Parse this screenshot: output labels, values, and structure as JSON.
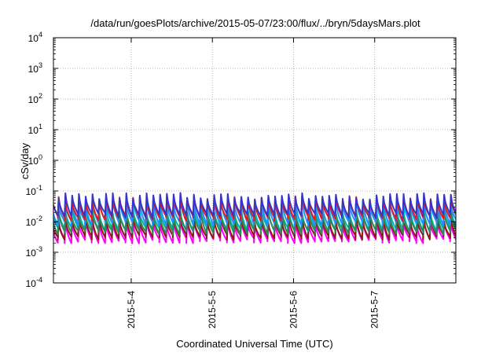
{
  "chart_data": {
    "type": "line",
    "title": "/data/run/goesPlots/archive/2015-05-07/23:00/flux/../bryn/5daysMars.plot",
    "xlabel": "Coordinated Universal Time (UTC)",
    "ylabel": "cSv/day",
    "yscale": "log",
    "ylim": [
      0.0001,
      10000
    ],
    "y_ticks": [
      {
        "base": "10",
        "exp": "-4",
        "value": 0.0001
      },
      {
        "base": "10",
        "exp": "-3",
        "value": 0.001
      },
      {
        "base": "10",
        "exp": "-2",
        "value": 0.01
      },
      {
        "base": "10",
        "exp": "-1",
        "value": 0.1
      },
      {
        "base": "10",
        "exp": "0",
        "value": 1
      },
      {
        "base": "10",
        "exp": "1",
        "value": 10
      },
      {
        "base": "10",
        "exp": "2",
        "value": 100
      },
      {
        "base": "10",
        "exp": "3",
        "value": 1000
      },
      {
        "base": "10",
        "exp": "4",
        "value": 10000
      }
    ],
    "xlim": [
      "2015-05-03T01:00",
      "2015-05-08T00:00"
    ],
    "x_ticks": [
      {
        "label": "2015-5-4",
        "value": "2015-05-04T00:00"
      },
      {
        "label": "2015-5-5",
        "value": "2015-05-05T00:00"
      },
      {
        "label": "2015-5-6",
        "value": "2015-05-06T00:00"
      },
      {
        "label": "2015-5-7",
        "value": "2015-05-07T00:00"
      }
    ],
    "grid": true,
    "legend": "none",
    "pulse_period_hours": 2.0,
    "series": [
      {
        "color": "#ff00ff",
        "peak": 0.0095,
        "trough": 0.0024
      },
      {
        "color": "#8b1a1a",
        "peak": 0.012,
        "trough": 0.0032
      },
      {
        "color": "#00b4b4",
        "peak": 0.024,
        "trough": 0.0055
      },
      {
        "color": "#2e8b57",
        "peak": 0.018,
        "trough": 0.0045
      },
      {
        "color": "#1e90ff",
        "peak": 0.045,
        "trough": 0.009
      },
      {
        "color": "#e41a1c",
        "peak": 0.055,
        "trough": 0.013
      },
      {
        "color": "#3535c8",
        "peak": 0.07,
        "trough": 0.016
      }
    ]
  }
}
